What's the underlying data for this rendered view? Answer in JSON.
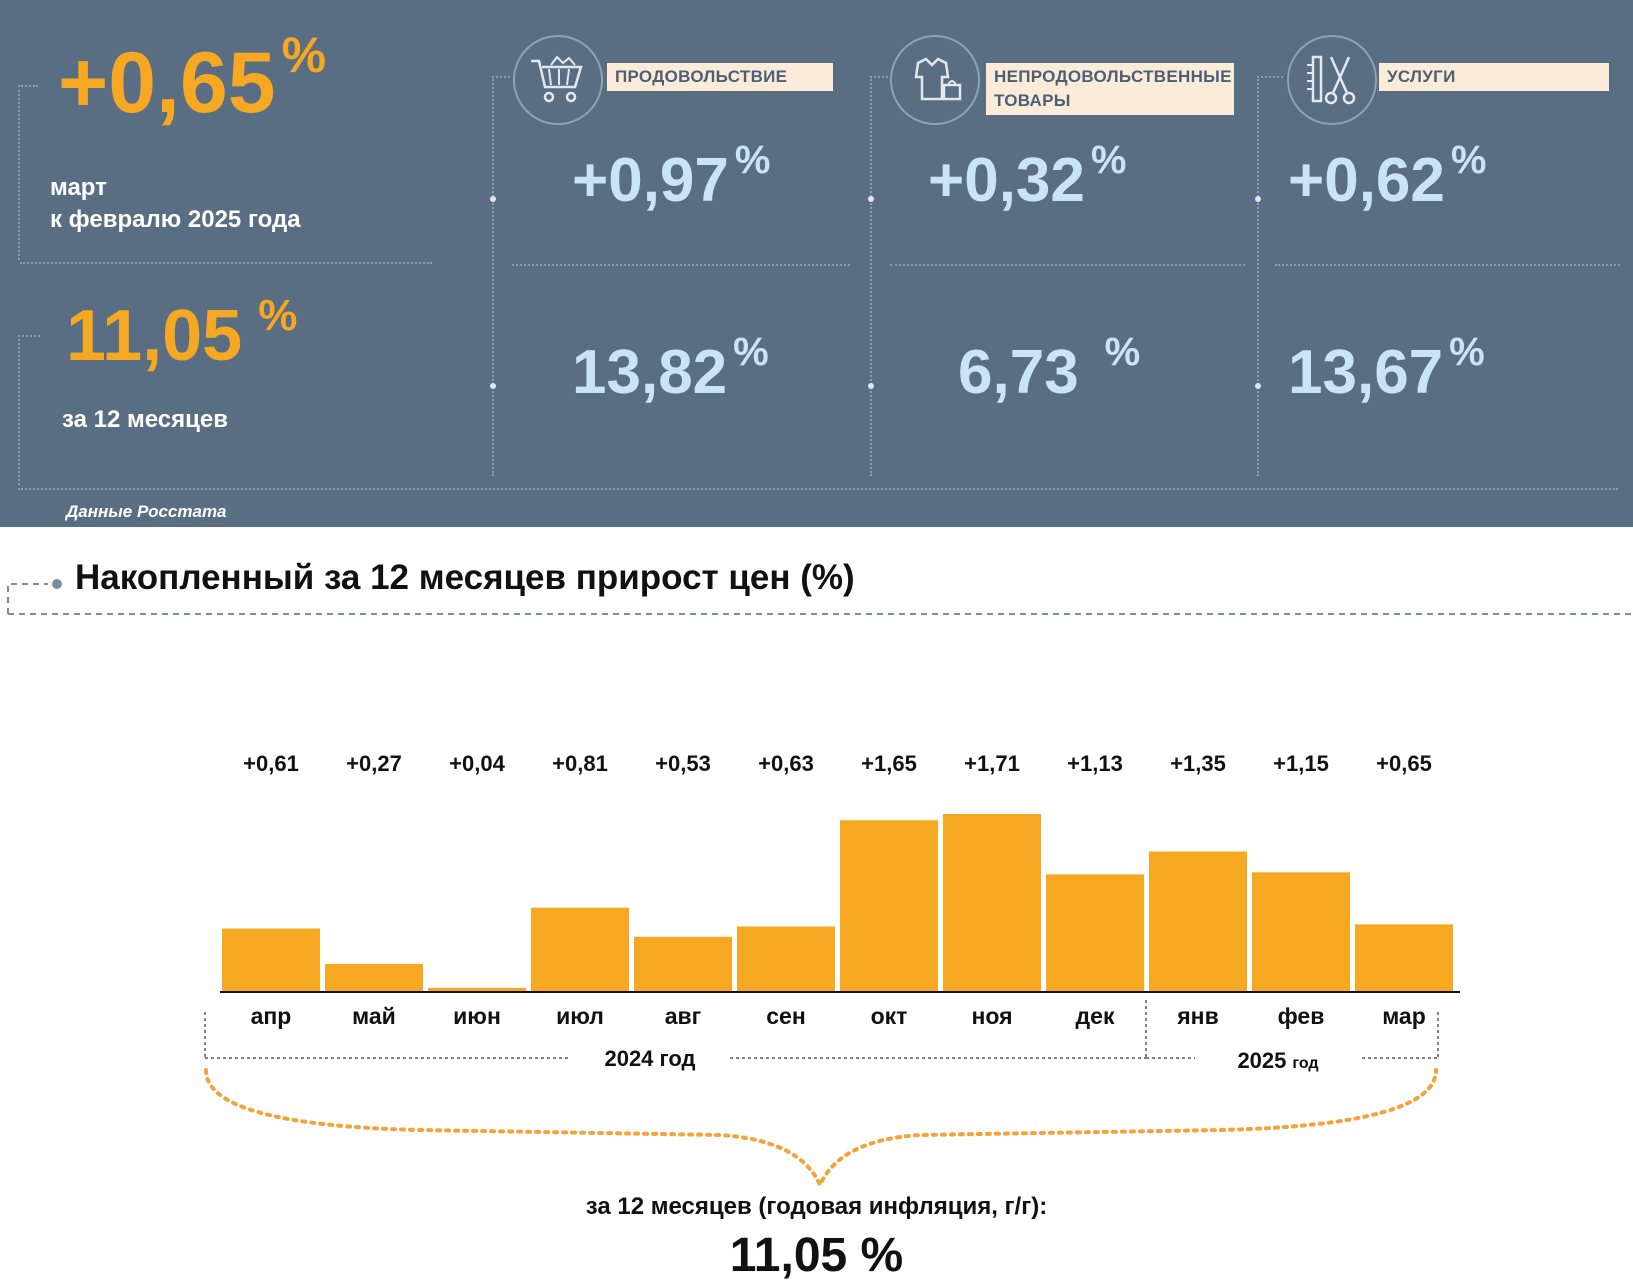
{
  "header": {
    "monthly_value": "+0,65",
    "monthly_pct": "%",
    "monthly_label_line1": "март",
    "monthly_label_line2": "к февралю 2025 года",
    "annual_value": "11,05",
    "annual_pct": "%",
    "annual_label": "за 12 месяцев",
    "source": "Данные Росстата"
  },
  "categories": [
    {
      "label": "ПРОДОВОЛЬСТВИЕ",
      "icon": "shopping-cart-icon",
      "monthly": "+0,97",
      "annual": "13,82",
      "pct": "%"
    },
    {
      "label": "НЕПРОДОВОЛЬСТВЕННЫЕ ТОВАРЫ",
      "icon": "clothes-bag-icon",
      "monthly": "+0,32",
      "annual": "6,73",
      "pct": "%"
    },
    {
      "label": "УСЛУГИ",
      "icon": "comb-scissors-icon",
      "monthly": "+0,62",
      "annual": "13,67",
      "pct": "%"
    }
  ],
  "section_title": "Накопленный за 12 месяцев прирост цен (%)",
  "chart_data": {
    "type": "bar",
    "categories": [
      "апр",
      "май",
      "июн",
      "июл",
      "авг",
      "сен",
      "окт",
      "ноя",
      "дек",
      "янв",
      "фев",
      "мар"
    ],
    "values": [
      0.61,
      0.27,
      0.04,
      0.81,
      0.53,
      0.63,
      1.65,
      1.71,
      1.13,
      1.35,
      1.15,
      0.65
    ],
    "data_labels": [
      "+0,61",
      "+0,27",
      "+0,04",
      "+0,81",
      "+0,53",
      "+0,63",
      "+1,65",
      "+1,71",
      "+1,13",
      "+1,35",
      "+1,15",
      "+0,65"
    ],
    "year_groups": [
      {
        "label": "2024 год",
        "months": 9
      },
      {
        "label": "2025",
        "suffix": "год",
        "months": 3
      }
    ],
    "ylim": [
      0,
      1.71
    ],
    "bar_color": "#f7a823",
    "grid": false
  },
  "annual_caption": "за 12 месяцев (годовая инфляция, г/г):",
  "annual_total": "11,05 %",
  "colors": {
    "panel": "#5a6e83",
    "accent": "#f7a823",
    "light_blue": "#c9e4f6",
    "label_bg": "#fbecd9"
  }
}
